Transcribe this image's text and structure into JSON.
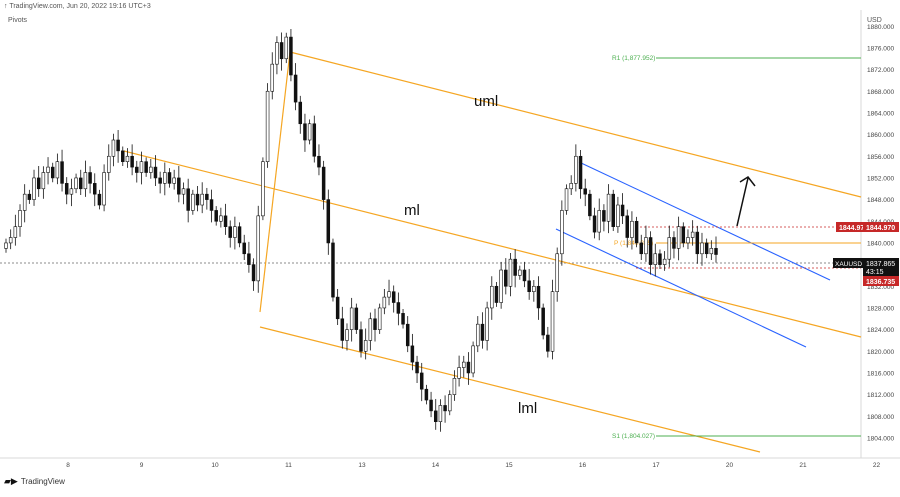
{
  "header": {
    "source_line": "↑ TradingView.com, Jun 20, 2022 19:16 UTC+3",
    "indicator": "Pivots"
  },
  "footer": {
    "brand": "TradingView"
  },
  "colors": {
    "orange": "#f5a623",
    "blue": "#2962ff",
    "green": "#4caf50",
    "red": "#c62828",
    "candle": "#111111"
  },
  "chart_data": {
    "type": "candlestick",
    "symbol": "XAUUSD",
    "currency_label": "USD",
    "y_ticks": [
      "1880.000",
      "1876.000",
      "1872.000",
      "1868.000",
      "1864.000",
      "1860.000",
      "1856.000",
      "1852.000",
      "1848.000",
      "1844.000",
      "1840.000",
      "1836.000",
      "1832.000",
      "1828.000",
      "1824.000",
      "1820.000",
      "1816.000",
      "1812.000",
      "1808.000",
      "1804.000"
    ],
    "ylim": [
      1800.3,
      1883.0
    ],
    "x_ticks": [
      "8",
      "9",
      "10",
      "11",
      "13",
      "14",
      "15",
      "16",
      "17",
      "20",
      "21",
      "22"
    ],
    "price_tags": [
      {
        "label": "1844.970",
        "value": 1844.97,
        "color": "#c62828"
      },
      {
        "label": "1837.865",
        "value": 1837.865,
        "color": "#111111"
      },
      {
        "label": "43:15",
        "value": 1836.6,
        "color": "#111111"
      },
      {
        "label": "1836.735",
        "value": 1836.735,
        "color": "#c62828"
      }
    ],
    "pivots": [
      {
        "label": "R1 (1,877.952)",
        "value": 1877.952
      },
      {
        "label": "P (1,840.825)",
        "value": 1840.825
      },
      {
        "label": "S1 (1,804.027)",
        "value": 1804.027
      }
    ],
    "annotations": [
      "uml",
      "ml",
      "lml"
    ],
    "closes": [
      1840,
      1841,
      1843,
      1846,
      1849,
      1848,
      1852,
      1850,
      1853,
      1854,
      1852,
      1855,
      1851,
      1849,
      1850,
      1852,
      1850,
      1853,
      1851,
      1849,
      1847,
      1853,
      1856,
      1859,
      1857,
      1855,
      1856,
      1854,
      1853,
      1855,
      1853,
      1854,
      1852,
      1851,
      1853,
      1851,
      1852,
      1849,
      1850,
      1846,
      1849,
      1847,
      1849,
      1848,
      1846,
      1844,
      1845,
      1843,
      1841,
      1843,
      1840,
      1838,
      1836,
      1833,
      1845,
      1855,
      1868,
      1873,
      1877,
      1874,
      1878,
      1871,
      1866,
      1862,
      1859,
      1862,
      1856,
      1854,
      1848,
      1840,
      1830,
      1826,
      1822,
      1824,
      1828,
      1824,
      1820,
      1822,
      1826,
      1824,
      1828,
      1830,
      1831,
      1829,
      1827,
      1825,
      1821,
      1818,
      1816,
      1813,
      1811,
      1809,
      1807,
      1810,
      1809,
      1812,
      1815,
      1817,
      1818,
      1816,
      1821,
      1825,
      1822,
      1828,
      1832,
      1829,
      1835,
      1832,
      1837,
      1834,
      1835,
      1833,
      1831,
      1832,
      1828,
      1823,
      1820,
      1831,
      1838,
      1846,
      1850,
      1851,
      1856,
      1850,
      1849,
      1845,
      1842,
      1846,
      1844,
      1849,
      1843,
      1847,
      1845,
      1841,
      1844,
      1840,
      1838,
      1841,
      1836,
      1838,
      1836,
      1837,
      1841,
      1839,
      1843,
      1840,
      1841,
      1842,
      1838,
      1840,
      1838,
      1839,
      1837.865
    ]
  }
}
